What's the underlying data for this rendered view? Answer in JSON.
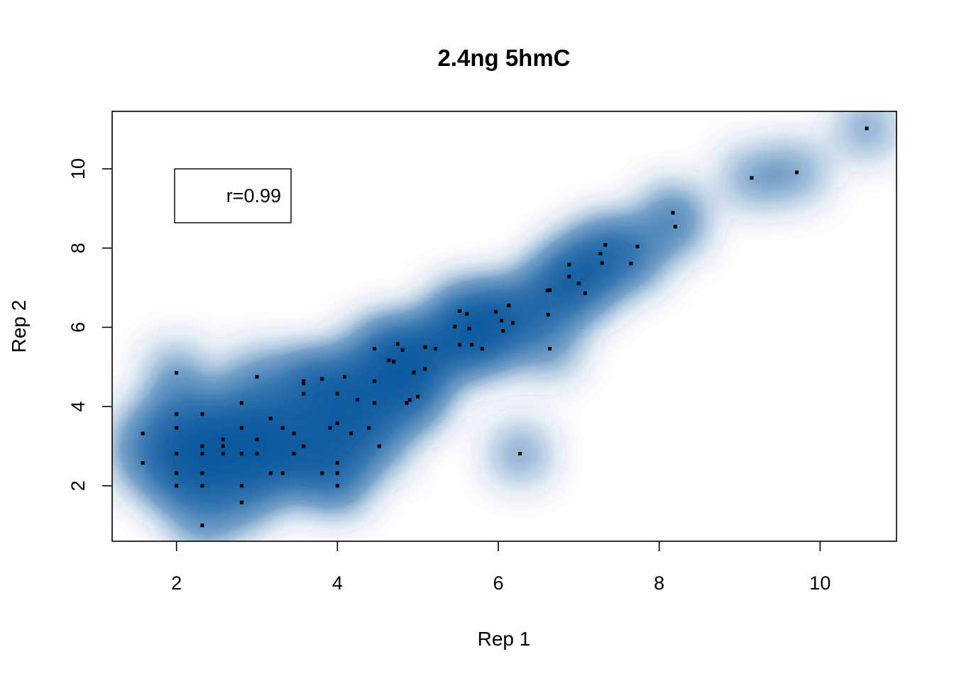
{
  "chart_data": {
    "type": "scatter",
    "title": "2.4ng 5hmC",
    "xlabel": "Rep 1",
    "ylabel": "Rep 2",
    "xlim": [
      1.2,
      10.95
    ],
    "ylim": [
      0.6,
      11.45
    ],
    "x_ticks": [
      2,
      4,
      6,
      8,
      10
    ],
    "y_ticks": [
      2,
      4,
      6,
      8,
      10
    ],
    "x_tick_labels": [
      "2",
      "4",
      "6",
      "8",
      "10"
    ],
    "y_tick_labels": [
      "2",
      "4",
      "6",
      "8",
      "10"
    ],
    "grid": false,
    "style": "smoothed density scatter",
    "density_color": "#08519c",
    "point_color": "#000000",
    "annotation": "r=0.99",
    "annotation_position": "top-left",
    "points": [
      [
        1.58,
        3.32
      ],
      [
        1.58,
        2.58
      ],
      [
        2.0,
        4.85
      ],
      [
        2.0,
        3.81
      ],
      [
        2.0,
        3.46
      ],
      [
        2.0,
        2.81
      ],
      [
        2.0,
        2.32
      ],
      [
        2.0,
        2.0
      ],
      [
        2.32,
        3.81
      ],
      [
        2.32,
        3.0
      ],
      [
        2.32,
        2.81
      ],
      [
        2.32,
        2.32
      ],
      [
        2.32,
        2.0
      ],
      [
        2.32,
        1.0
      ],
      [
        2.58,
        3.17
      ],
      [
        2.58,
        3.0
      ],
      [
        2.58,
        2.81
      ],
      [
        2.81,
        4.09
      ],
      [
        2.81,
        3.46
      ],
      [
        2.81,
        2.81
      ],
      [
        2.81,
        2.0
      ],
      [
        2.81,
        1.58
      ],
      [
        3.0,
        4.75
      ],
      [
        3.0,
        3.17
      ],
      [
        3.0,
        2.81
      ],
      [
        3.17,
        3.7
      ],
      [
        3.17,
        2.32
      ],
      [
        3.32,
        3.46
      ],
      [
        3.32,
        2.32
      ],
      [
        3.46,
        3.32
      ],
      [
        3.46,
        2.81
      ],
      [
        3.58,
        4.64
      ],
      [
        3.58,
        4.58
      ],
      [
        3.58,
        4.32
      ],
      [
        3.58,
        3.0
      ],
      [
        3.81,
        4.7
      ],
      [
        3.81,
        2.32
      ],
      [
        3.91,
        3.46
      ],
      [
        4.0,
        4.32
      ],
      [
        4.0,
        3.58
      ],
      [
        4.0,
        2.58
      ],
      [
        4.0,
        2.32
      ],
      [
        4.0,
        2.0
      ],
      [
        4.09,
        4.75
      ],
      [
        4.17,
        3.32
      ],
      [
        4.25,
        4.17
      ],
      [
        4.39,
        3.46
      ],
      [
        4.46,
        5.46
      ],
      [
        4.46,
        4.64
      ],
      [
        4.46,
        4.09
      ],
      [
        4.52,
        3.0
      ],
      [
        4.64,
        5.17
      ],
      [
        4.7,
        5.13
      ],
      [
        4.75,
        5.58
      ],
      [
        4.81,
        5.43
      ],
      [
        4.86,
        4.09
      ],
      [
        4.9,
        4.17
      ],
      [
        4.95,
        4.86
      ],
      [
        5.0,
        4.25
      ],
      [
        5.09,
        5.5
      ],
      [
        5.09,
        4.95
      ],
      [
        5.22,
        5.46
      ],
      [
        5.46,
        6.02
      ],
      [
        5.52,
        6.41
      ],
      [
        5.52,
        5.56
      ],
      [
        5.61,
        6.34
      ],
      [
        5.64,
        5.97
      ],
      [
        5.67,
        5.56
      ],
      [
        5.8,
        5.46
      ],
      [
        5.97,
        6.39
      ],
      [
        6.04,
        6.17
      ],
      [
        6.06,
        5.91
      ],
      [
        6.13,
        6.55
      ],
      [
        6.18,
        6.11
      ],
      [
        6.27,
        2.81
      ],
      [
        6.61,
        6.93
      ],
      [
        6.62,
        6.32
      ],
      [
        6.64,
        6.94
      ],
      [
        6.64,
        5.46
      ],
      [
        6.88,
        7.58
      ],
      [
        6.88,
        7.28
      ],
      [
        7.0,
        7.11
      ],
      [
        7.08,
        6.86
      ],
      [
        7.27,
        7.86
      ],
      [
        7.29,
        7.62
      ],
      [
        7.33,
        8.08
      ],
      [
        7.65,
        7.61
      ],
      [
        7.73,
        8.04
      ],
      [
        8.17,
        8.89
      ],
      [
        8.2,
        8.54
      ],
      [
        9.15,
        9.77
      ],
      [
        9.71,
        9.91
      ],
      [
        10.58,
        11.02
      ]
    ]
  }
}
